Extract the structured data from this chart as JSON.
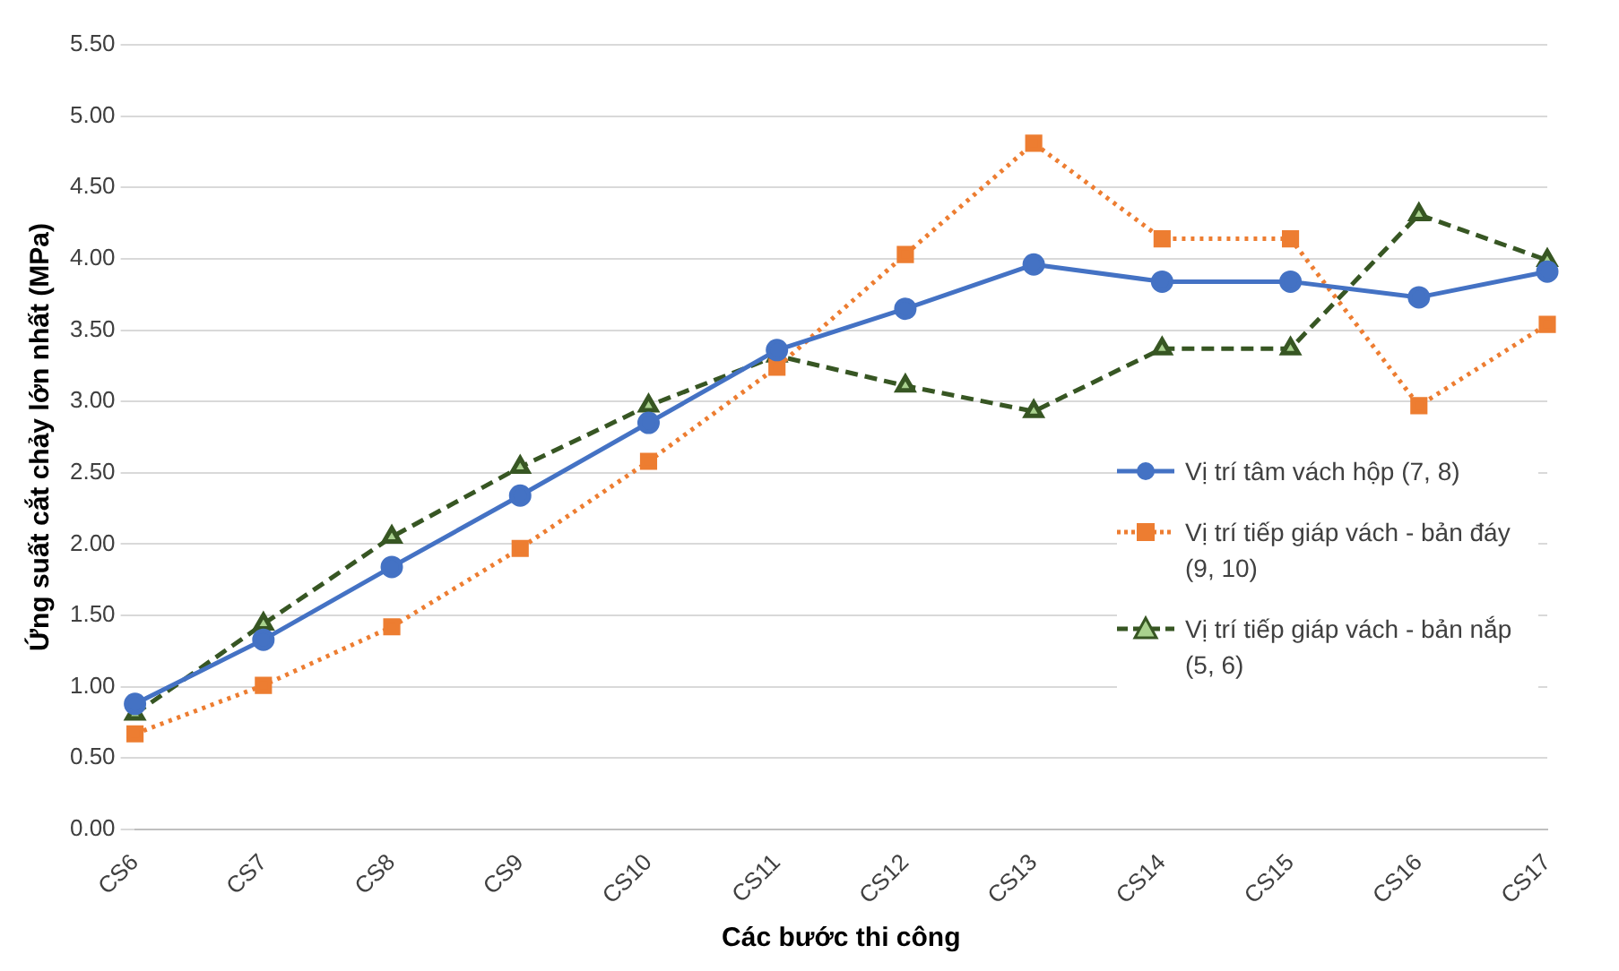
{
  "chart_data": {
    "type": "line",
    "xlabel": "Các bước thi công",
    "ylabel": "Ứng suất cắt chảy lớn nhất (MPa)",
    "categories": [
      "CS6",
      "CS7",
      "CS8",
      "CS9",
      "CS10",
      "CS11",
      "CS12",
      "CS13",
      "CS14",
      "CS15",
      "CS16",
      "CS17"
    ],
    "series": [
      {
        "name": "Vị trí tâm vách hộp (7, 8)",
        "color": "#4472c4",
        "marker": "circle",
        "line_style": "solid",
        "values": [
          0.88,
          1.33,
          1.84,
          2.34,
          2.85,
          3.36,
          3.65,
          3.96,
          3.84,
          3.84,
          3.73,
          3.91
        ]
      },
      {
        "name": "Vị trí tiếp giáp vách - bản đáy (9, 10)",
        "color": "#ed7d31",
        "marker": "square",
        "line_style": "dotted",
        "values": [
          0.67,
          1.01,
          1.42,
          1.97,
          2.58,
          3.24,
          4.03,
          4.81,
          4.14,
          4.14,
          2.97,
          3.54
        ]
      },
      {
        "name": "Vị trí tiếp giáp vách - bản nắp (5, 6)",
        "color": "#375623",
        "marker": "triangle",
        "line_style": "dashed",
        "values": [
          0.81,
          1.44,
          2.05,
          2.54,
          2.97,
          3.32,
          3.11,
          2.93,
          3.37,
          3.37,
          4.31,
          3.99
        ]
      }
    ],
    "ylim": [
      0,
      5.5
    ],
    "yticks": [
      {
        "value": 0,
        "label": "0.00"
      },
      {
        "value": 0.5,
        "label": "0.50"
      },
      {
        "value": 1,
        "label": "1.00"
      },
      {
        "value": 1.5,
        "label": "1.50"
      },
      {
        "value": 2,
        "label": "2.00"
      },
      {
        "value": 2.5,
        "label": "2.50"
      },
      {
        "value": 3,
        "label": "3.00"
      },
      {
        "value": 3.5,
        "label": "3.50"
      },
      {
        "value": 4,
        "label": "4.00"
      },
      {
        "value": 4.5,
        "label": "4.50"
      },
      {
        "value": 5,
        "label": "5.00"
      },
      {
        "value": 5.5,
        "label": "5.50"
      }
    ],
    "grid": "y",
    "legend": "right"
  }
}
